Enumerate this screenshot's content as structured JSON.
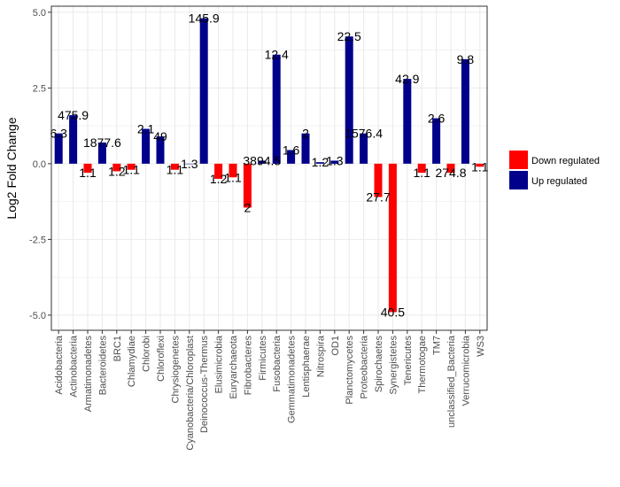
{
  "chart_data": {
    "type": "bar",
    "xlabel": "",
    "ylabel": "Log2 Fold Change",
    "ylim": [
      -5.5,
      5.2
    ],
    "yticks": [
      -5.0,
      -2.5,
      0.0,
      2.5,
      5.0
    ],
    "ytick_labels": [
      "-5.0",
      "-2.5",
      "0.0",
      "2.5",
      "5.0"
    ],
    "grid": true,
    "legend_position": "right",
    "categories": [
      "Acidobacteria",
      "Actinobacteria",
      "Armatimonadetes",
      "Bacteroidetes",
      "BRC1",
      "Chlamydiae",
      "Chlorobi",
      "Chloroflexi",
      "Chrysiogenetes",
      "Cyanobacteria/Chloroplast",
      "Deinococcus-Thermus",
      "Elusimicrobia",
      "Euryarchaeota",
      "Fibrobacteres",
      "Firmicutes",
      "Fusobacteria",
      "Gemmatimonadetes",
      "Lentisphaerae",
      "Nitrospira",
      "OD1",
      "Planctomycetes",
      "Proteobacteria",
      "Spirochaetes",
      "Synergistetes",
      "Tenericutes",
      "Thermotogae",
      "TM7",
      "unclassified_Bacteria",
      "Verrucomicrobia",
      "WS3"
    ],
    "series": [
      {
        "name": "Up regulated",
        "color": "#00008b",
        "bars": [
          {
            "category": "Acidobacteria",
            "value": 1.0,
            "label": "6.3"
          },
          {
            "category": "Actinobacteria",
            "value": 1.6,
            "label": "475.9"
          },
          {
            "category": "Bacteroidetes",
            "value": 0.7,
            "label": "1877.6"
          },
          {
            "category": "Chlorobi",
            "value": 1.15,
            "label": "2.1"
          },
          {
            "category": "Chloroflexi",
            "value": 0.9,
            "label": "49"
          },
          {
            "category": "Cyanobacteria/Chloroplast",
            "value": 0.0,
            "label": "1.3"
          },
          {
            "category": "Deinococcus-Thermus",
            "value": 4.8,
            "label": "145.9"
          },
          {
            "category": "Firmicutes",
            "value": 0.1,
            "label": "3894.5"
          },
          {
            "category": "Fusobacteria",
            "value": 3.6,
            "label": "12.4"
          },
          {
            "category": "Gemmatimonadetes",
            "value": 0.45,
            "label": "1.6"
          },
          {
            "category": "Lentisphaerae",
            "value": 1.0,
            "label": "2"
          },
          {
            "category": "Nitrospira",
            "value": 0.05,
            "label": "1.2"
          },
          {
            "category": "OD1",
            "value": 0.1,
            "label": "1.3"
          },
          {
            "category": "Planctomycetes",
            "value": 4.2,
            "label": "22.5"
          },
          {
            "category": "Proteobacteria",
            "value": 1.0,
            "label": "1576.4"
          },
          {
            "category": "Tenericutes",
            "value": 2.8,
            "label": "42.9"
          },
          {
            "category": "TM7",
            "value": 1.5,
            "label": "2.6"
          },
          {
            "category": "Verrucomicrobia",
            "value": 3.45,
            "label": "9.8"
          }
        ]
      },
      {
        "name": "Down regulated",
        "color": "#ff0000",
        "bars": [
          {
            "category": "Armatimonadetes",
            "value": -0.3,
            "label": "1.1"
          },
          {
            "category": "BRC1",
            "value": -0.25,
            "label": "1.2"
          },
          {
            "category": "Chlamydiae",
            "value": -0.2,
            "label": "1.1"
          },
          {
            "category": "Chrysiogenetes",
            "value": -0.2,
            "label": "1.1"
          },
          {
            "category": "Elusimicrobia",
            "value": -0.5,
            "label": "1.2"
          },
          {
            "category": "Euryarchaeota",
            "value": -0.45,
            "label": "1.1"
          },
          {
            "category": "Fibrobacteres",
            "value": -1.45,
            "label": "2"
          },
          {
            "category": "Spirochaetes",
            "value": -1.1,
            "label": "27.7"
          },
          {
            "category": "Synergistetes",
            "value": -4.9,
            "label": "40.5"
          },
          {
            "category": "Thermotogae",
            "value": -0.3,
            "label": "1.1"
          },
          {
            "category": "unclassified_Bacteria",
            "value": -0.3,
            "label": "274.8"
          },
          {
            "category": "WS3",
            "value": -0.1,
            "label": "1.1"
          }
        ]
      }
    ]
  }
}
